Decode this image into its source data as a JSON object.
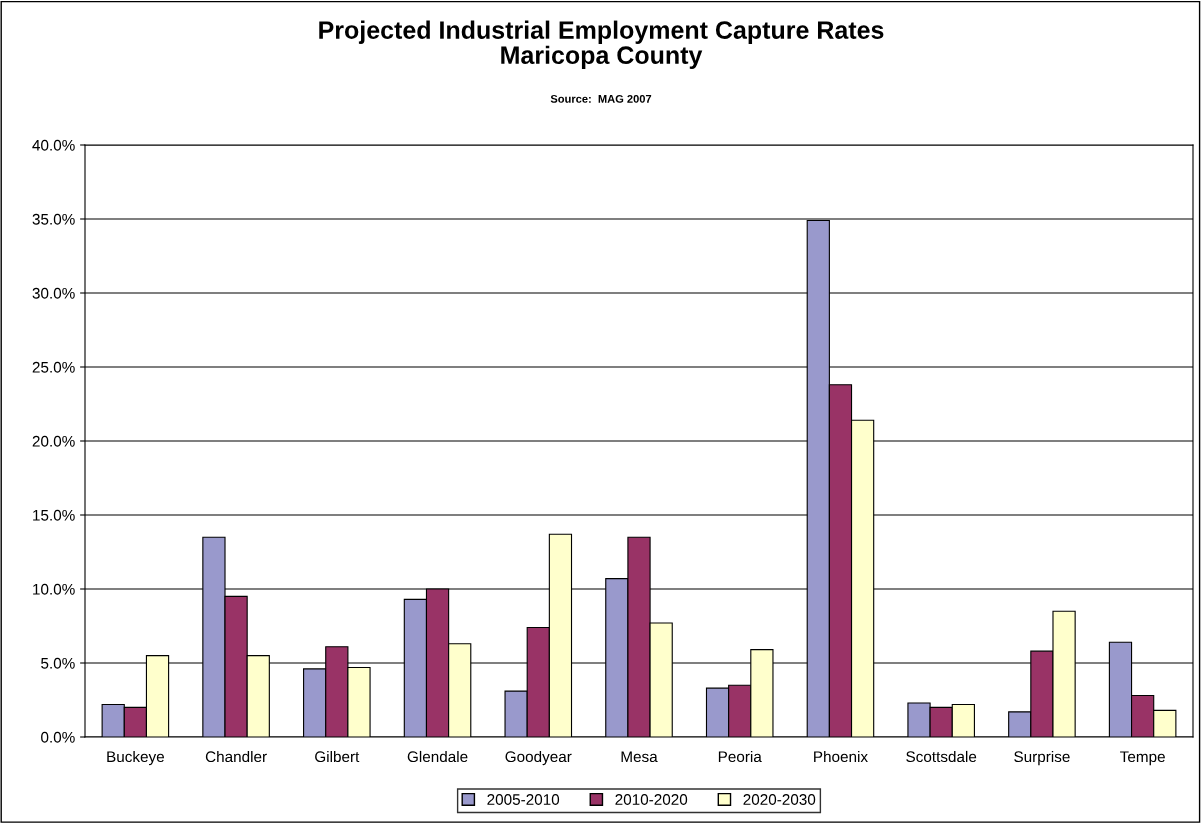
{
  "chart_data": {
    "type": "bar",
    "title": "Projected Industrial Employment Capture Rates\nMaricopa County",
    "annotations": [
      "Source:  MAG 2007"
    ],
    "categories": [
      "Buckeye",
      "Chandler",
      "Gilbert",
      "Glendale",
      "Goodyear",
      "Mesa",
      "Peoria",
      "Phoenix",
      "Scottsdale",
      "Surprise",
      "Tempe"
    ],
    "series": [
      {
        "name": "2005-2010",
        "color": "#9999cc",
        "values": [
          2.2,
          13.5,
          4.6,
          9.3,
          3.1,
          10.7,
          3.3,
          34.9,
          2.3,
          1.7,
          6.4
        ]
      },
      {
        "name": "2010-2020",
        "color": "#993366",
        "values": [
          2.0,
          9.5,
          6.1,
          10.0,
          7.4,
          13.5,
          3.5,
          23.8,
          2.0,
          5.8,
          2.8
        ]
      },
      {
        "name": "2020-2030",
        "color": "#ffffcc",
        "values": [
          5.5,
          5.5,
          4.7,
          6.3,
          13.7,
          7.7,
          5.9,
          21.4,
          2.2,
          8.5,
          1.8
        ]
      }
    ],
    "ylim": [
      0,
      40
    ],
    "yticks": [
      {
        "value": 0,
        "label": "0.0%"
      },
      {
        "value": 5,
        "label": "5.0%"
      },
      {
        "value": 10,
        "label": "10.0%"
      },
      {
        "value": 15,
        "label": "15.0%"
      },
      {
        "value": 20,
        "label": "20.0%"
      },
      {
        "value": 25,
        "label": "25.0%"
      },
      {
        "value": 30,
        "label": "30.0%"
      },
      {
        "value": 35,
        "label": "35.0%"
      },
      {
        "value": 40,
        "label": "40.0%"
      }
    ],
    "grid": "y",
    "legend": "bottom"
  }
}
